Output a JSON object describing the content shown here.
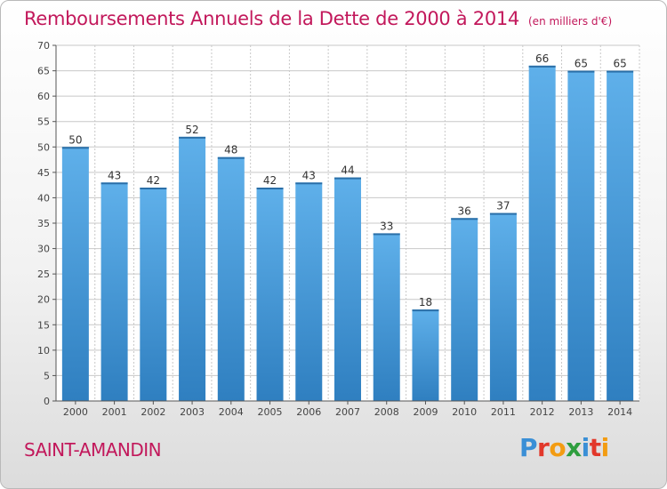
{
  "chart_data": {
    "type": "bar",
    "title": "Remboursements Annuels de la Dette de 2000 à 2014",
    "subtitle": "(en milliers d'€)",
    "categories": [
      "2000",
      "2001",
      "2002",
      "2003",
      "2004",
      "2005",
      "2006",
      "2007",
      "2008",
      "2009",
      "2010",
      "2011",
      "2012",
      "2013",
      "2014"
    ],
    "values": [
      50,
      43,
      42,
      52,
      48,
      42,
      43,
      44,
      33,
      18,
      36,
      37,
      66,
      65,
      65
    ],
    "ylim": [
      0,
      70
    ],
    "yticks": [
      0,
      5,
      10,
      15,
      20,
      25,
      30,
      35,
      40,
      45,
      50,
      55,
      60,
      65,
      70
    ],
    "grid": true,
    "bar_color": "#4a9bd8",
    "data_labels": true
  },
  "commune": "SAINT-AMANDIN",
  "logo": {
    "text": "Proxiti",
    "letter_colors": [
      "#3a8fd6",
      "#e2382b",
      "#f39c12",
      "#2e9e3e",
      "#3a8fd6",
      "#e2382b",
      "#f39c12"
    ]
  },
  "colors": {
    "title": "#c2185b",
    "grid": "#c8c8c8",
    "axis": "#555555"
  }
}
